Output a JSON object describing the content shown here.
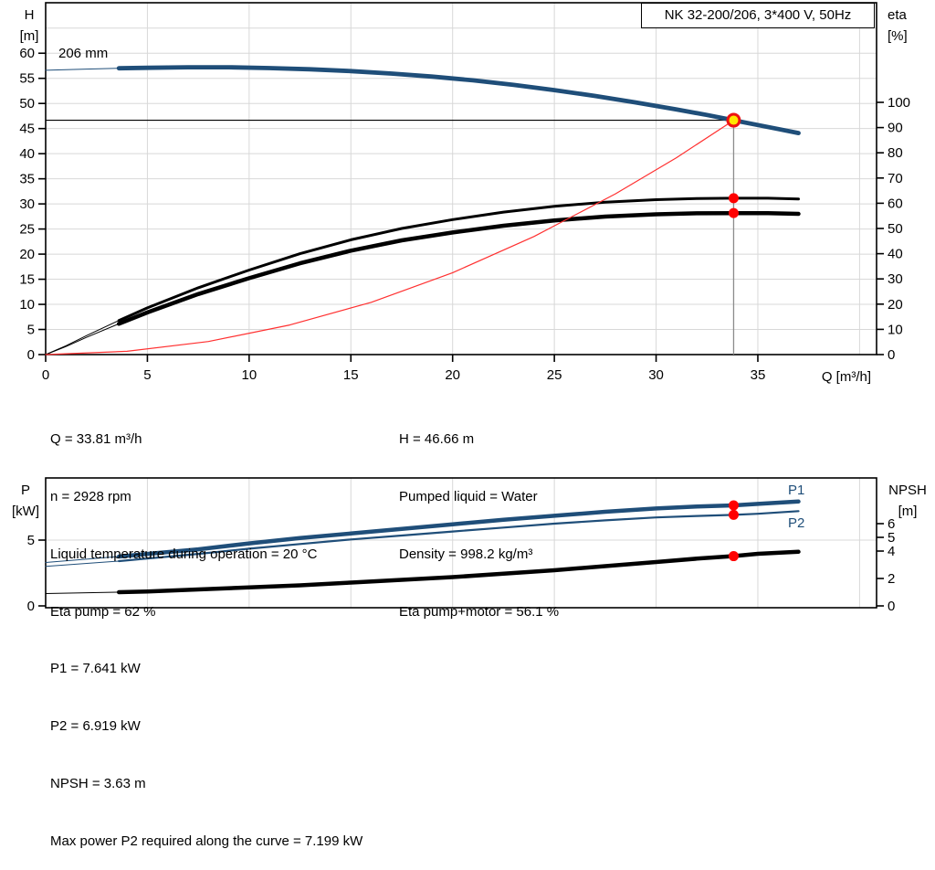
{
  "header": {
    "title_box": "NK 32-200/206, 3*400 V, 50Hz"
  },
  "colors": {
    "curve_blue": "#1f4e79",
    "curve_black": "#000000",
    "system_red": "#ff3030",
    "dot_red": "#ff0000",
    "duty_yellow": "#ffe600",
    "duty_ring_red": "#ee1111",
    "grid": "#d8d8d8",
    "duty_line_gray": "#8c8c8c",
    "axis": "#000000"
  },
  "info_top": {
    "col1": [
      "Q = 33.81 m³/h",
      "n = 2928 rpm",
      "Liquid temperature during operation = 20 °C",
      "Eta pump = 62 %"
    ],
    "col2": [
      "H = 46.66 m",
      "Pumped liquid = Water",
      "Density = 998.2 kg/m³",
      "Eta pump+motor = 56.1 %"
    ]
  },
  "info_bottom": {
    "lines": [
      "P1 = 7.641 kW",
      "P2 = 6.919 kW",
      "NPSH = 3.63 m",
      "Max power P2 required along the curve = 7.199 kW"
    ]
  },
  "chart_data": [
    {
      "type": "line",
      "name": "hq-eta-chart",
      "impeller_label": "206 mm",
      "axes": {
        "x": {
          "label": "Q [m³/h]",
          "min": 0,
          "max": 40.8,
          "ticks": [
            0,
            5,
            10,
            15,
            20,
            25,
            30,
            35
          ]
        },
        "y_left": {
          "label": [
            "H",
            "[m]"
          ],
          "min": 0,
          "max": 70,
          "ticks": [
            0,
            5,
            10,
            15,
            20,
            25,
            30,
            35,
            40,
            45,
            50,
            55,
            60
          ]
        },
        "y_right": {
          "label": [
            "eta",
            "[%]"
          ],
          "min": 0,
          "max": 139,
          "ticks": [
            0,
            10,
            20,
            30,
            40,
            50,
            60,
            70,
            80,
            90,
            100
          ]
        }
      },
      "duty_point": {
        "Q": 33.81,
        "H": 46.66,
        "eta_pump": 62,
        "eta_pump_motor": 56.1
      },
      "series": [
        {
          "name": "hq-curve-206mm",
          "color_key": "curve_blue",
          "width": 4.8,
          "thin_until": 3.6,
          "y_axis": "left",
          "x": [
            0,
            2,
            3.6,
            5,
            7,
            9,
            11,
            13,
            15,
            17,
            19,
            21,
            23,
            25,
            27,
            29,
            31,
            32.5,
            33.81,
            35,
            36,
            37
          ],
          "y": [
            56.6,
            56.85,
            57.0,
            57.1,
            57.2,
            57.2,
            57.05,
            56.8,
            56.45,
            55.95,
            55.35,
            54.6,
            53.7,
            52.65,
            51.5,
            50.2,
            48.8,
            47.7,
            46.66,
            45.7,
            44.9,
            44.1
          ]
        },
        {
          "name": "eta-pump-curve",
          "color_key": "curve_black",
          "width": 3.0,
          "thin_until": 3.6,
          "y_axis": "right",
          "x": [
            0,
            1,
            2,
            3.6,
            5,
            7.5,
            10,
            12.5,
            15,
            17.5,
            20,
            22.5,
            25,
            27.5,
            30,
            32,
            33.81,
            35.5,
            37
          ],
          "y": [
            0,
            3.5,
            7.5,
            13.5,
            18.5,
            26.5,
            33.5,
            40,
            45.5,
            50,
            53.5,
            56.5,
            58.8,
            60.4,
            61.4,
            61.9,
            62,
            62,
            61.7
          ]
        },
        {
          "name": "eta-pump-motor-curve",
          "color_key": "curve_black",
          "width": 4.5,
          "thin_until": 3.6,
          "y_axis": "right",
          "x": [
            0,
            1,
            2,
            3.6,
            5,
            7.5,
            10,
            12.5,
            15,
            17.5,
            20,
            22.5,
            25,
            27.5,
            30,
            32,
            33.81,
            35.5,
            37
          ],
          "y": [
            0,
            3.2,
            6.8,
            12.2,
            16.7,
            24,
            30.3,
            36.2,
            41.2,
            45.3,
            48.4,
            51.1,
            53.2,
            54.7,
            55.6,
            56,
            56.1,
            56.1,
            55.8
          ]
        },
        {
          "name": "system-curve",
          "color_key": "system_red",
          "width": 1.2,
          "thin_until": null,
          "y_axis": "left",
          "x": [
            0,
            4,
            8,
            12,
            16,
            20,
            24,
            28,
            31,
            33.81
          ],
          "y": [
            0,
            0.65,
            2.6,
            5.9,
            10.4,
            16.3,
            23.5,
            32.0,
            39.2,
            46.66
          ]
        }
      ]
    },
    {
      "type": "line",
      "name": "power-npsh-chart",
      "series_labels": {
        "p1": "P1",
        "p2": "P2"
      },
      "axes": {
        "x": {
          "label": "",
          "min": 0,
          "max": 40.8,
          "ticks": []
        },
        "y_left": {
          "label": [
            "P",
            "[kW]"
          ],
          "min": 0,
          "max": 9.7,
          "ticks": [
            0,
            5
          ]
        },
        "y_right": {
          "label": [
            "NPSH",
            "[m]"
          ],
          "min": 0,
          "max": 9.3,
          "ticks": [
            0,
            2,
            4,
            5,
            6
          ]
        }
      },
      "duty_point": {
        "Q": 33.81,
        "P1": 7.641,
        "P2": 6.919,
        "NPSH": 3.63
      },
      "series": [
        {
          "name": "p1-curve",
          "color_key": "curve_blue",
          "width": 4.5,
          "thin_until": 3.6,
          "y_axis": "left",
          "x": [
            0,
            3.6,
            5,
            7.5,
            10,
            12.5,
            15,
            17.5,
            20,
            22.5,
            25,
            27.5,
            30,
            32,
            33.81,
            35,
            37
          ],
          "y": [
            3.3,
            3.75,
            3.95,
            4.3,
            4.75,
            5.15,
            5.5,
            5.85,
            6.2,
            6.55,
            6.85,
            7.15,
            7.4,
            7.55,
            7.641,
            7.75,
            7.93
          ]
        },
        {
          "name": "p2-curve",
          "color_key": "curve_blue",
          "width": 2.2,
          "thin_until": 3.6,
          "y_axis": "left",
          "x": [
            0,
            3.6,
            5,
            7.5,
            10,
            12.5,
            15,
            17.5,
            20,
            22.5,
            25,
            27.5,
            30,
            32,
            33.81,
            35,
            37
          ],
          "y": [
            3.0,
            3.4,
            3.6,
            3.95,
            4.35,
            4.7,
            5.05,
            5.35,
            5.65,
            5.95,
            6.25,
            6.5,
            6.72,
            6.83,
            6.919,
            7.0,
            7.199
          ]
        },
        {
          "name": "npsh-curve",
          "color_key": "curve_black",
          "width": 4.5,
          "thin_until": 3.6,
          "y_axis": "right",
          "x": [
            0,
            3.6,
            5,
            7.5,
            10,
            12.5,
            15,
            17.5,
            20,
            22.5,
            25,
            27.5,
            30,
            32,
            33.81,
            35,
            37
          ],
          "y": [
            0.9,
            1.0,
            1.05,
            1.2,
            1.35,
            1.5,
            1.7,
            1.9,
            2.1,
            2.35,
            2.6,
            2.9,
            3.2,
            3.45,
            3.63,
            3.8,
            3.95
          ]
        }
      ]
    }
  ]
}
